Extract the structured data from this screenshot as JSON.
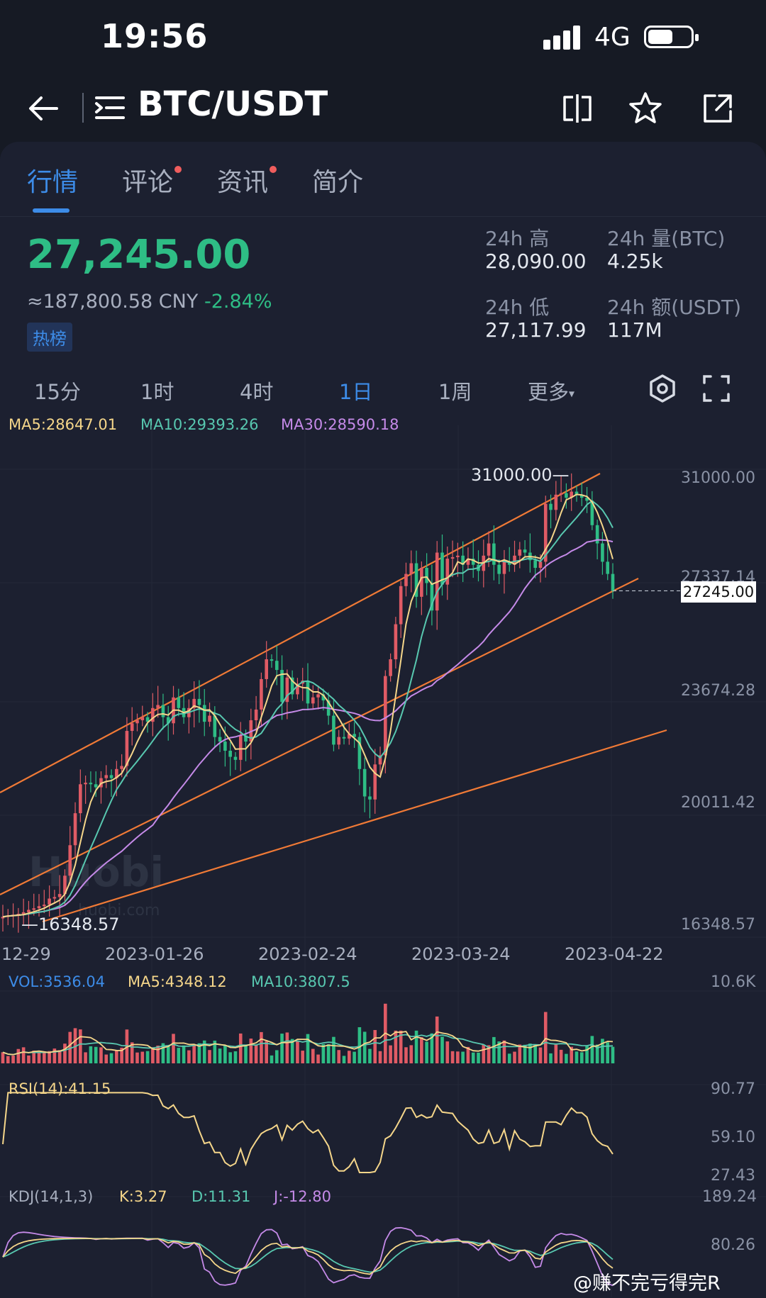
{
  "status_bar": {
    "time": "19:56",
    "network": "4G"
  },
  "nav": {
    "pair": "BTC/USDT"
  },
  "tabs": [
    {
      "label": "行情",
      "dot": false,
      "active": true
    },
    {
      "label": "评论",
      "dot": true,
      "active": false
    },
    {
      "label": "资讯",
      "dot": true,
      "active": false
    },
    {
      "label": "简介",
      "dot": false,
      "active": false
    }
  ],
  "ticker": {
    "price": "27,245.00",
    "cny": "≈187,800.58 CNY",
    "change": "-2.84%",
    "hot_badge": "热榜",
    "high_label": "24h 高",
    "high_value": "28,090.00",
    "vol_label": "24h 量(BTC)",
    "vol_value": "4.25k",
    "low_label": "24h 低",
    "low_value": "27,117.99",
    "amt_label": "24h 额(USDT)",
    "amt_value": "117M"
  },
  "intervals": [
    {
      "label": "15分",
      "active": false
    },
    {
      "label": "1时",
      "active": false
    },
    {
      "label": "4时",
      "active": false
    },
    {
      "label": "1日",
      "active": true
    },
    {
      "label": "1周",
      "active": false
    },
    {
      "label": "更多",
      "active": false
    }
  ],
  "colors": {
    "up": "#e05b65",
    "down": "#2ebd85",
    "ma5": "#f5d68a",
    "ma10": "#58c8b0",
    "ma30": "#c58ae8",
    "accent": "#3d8ce8",
    "channel": "#f07a36"
  },
  "chart_data": {
    "type": "candlestick",
    "main_legend": {
      "ma5": "MA5:28647.01",
      "ma10": "MA10:29393.26",
      "ma30": "MA30:28590.18"
    },
    "y_ticks": [
      "31000.00",
      "27337.14",
      "23674.28",
      "20011.42",
      "16348.57"
    ],
    "ylim": [
      16348.57,
      31000.0
    ],
    "x_labels": [
      "12-29",
      "2023-01-26",
      "2023-02-24",
      "2023-03-24",
      "2023-04-22"
    ],
    "high_marker": "31000.00",
    "low_marker": "16348.57",
    "last_price": "27245.00",
    "close": [
      16550,
      16600,
      16620,
      16650,
      16700,
      16780,
      16830,
      16900,
      16950,
      17150,
      17200,
      17300,
      17900,
      18900,
      19950,
      20900,
      20950,
      20900,
      20800,
      21100,
      21200,
      21100,
      21400,
      21500,
      22650,
      22900,
      23000,
      23100,
      22950,
      23400,
      23500,
      23100,
      22900,
      23750,
      23400,
      23100,
      23400,
      23700,
      23500,
      22950,
      23150,
      22450,
      22300,
      22000,
      21800,
      21700,
      22500,
      22300,
      23000,
      23350,
      24350,
      25000,
      24950,
      24650,
      23600,
      24400,
      23850,
      24200,
      24300,
      23550,
      23750,
      23850,
      23650,
      23150,
      22200,
      22450,
      22400,
      22550,
      22450,
      21400,
      20500,
      20400,
      21550,
      21850,
      24450,
      25000,
      26150,
      27400,
      27800,
      28150,
      27050,
      28000,
      27500,
      26600,
      28500,
      27450,
      28300,
      28350,
      28400,
      28100,
      28300,
      28100,
      27900,
      28400,
      28800,
      28100,
      27800,
      28200,
      28100,
      28400,
      28600,
      28500,
      28250,
      28000,
      28200,
      30100,
      29900,
      30400,
      30450,
      30300,
      30500,
      30400,
      30300,
      30200,
      29400,
      28800,
      28200,
      27800,
      27245
    ],
    "volume_legend": {
      "vol": "VOL:3536.04",
      "ma5": "MA5:4348.12",
      "ma10": "MA10:3807.5"
    },
    "volume_ticks": [
      "10.6K"
    ],
    "rsi_legend": "RSI(14):41.15",
    "rsi_ticks": [
      "90.77",
      "59.10",
      "27.43"
    ],
    "kdj_legend": {
      "name": "KDJ(14,1,3)",
      "k": "K:3.27",
      "d": "D:11.31",
      "j": "J:-12.80"
    },
    "kdj_ticks": [
      "189.24",
      "80.26"
    ]
  },
  "watermark": {
    "brand": "Huobi",
    "url": "huobi.com",
    "weibo": "@赚不完亏得完R"
  }
}
